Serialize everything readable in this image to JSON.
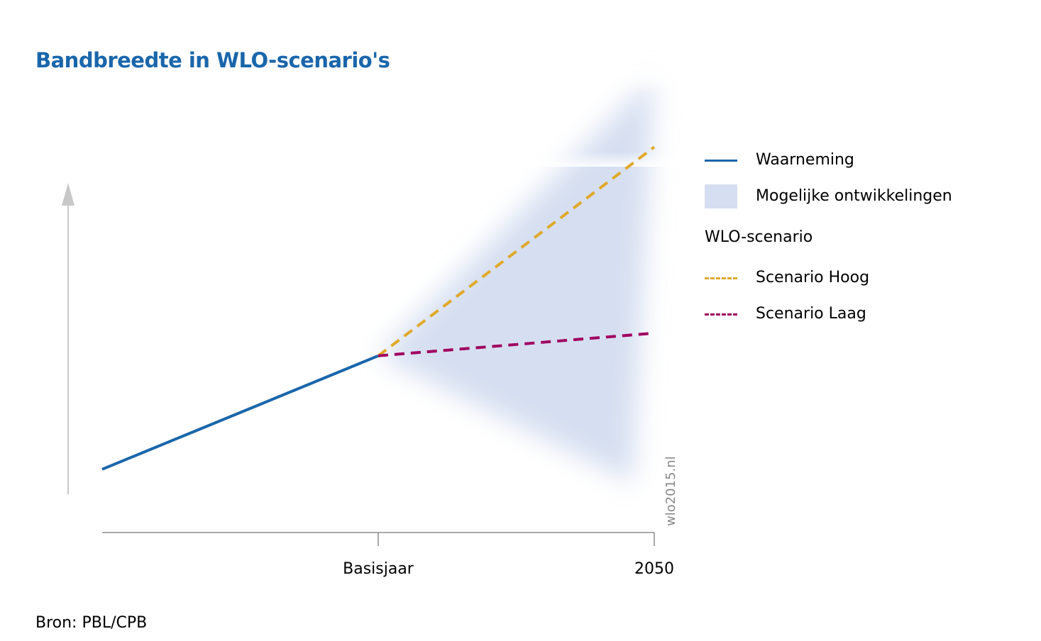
{
  "title": "Bandbreedte in WLO-scenario's",
  "source": "Bron: PBL/CPB",
  "watermark": "wlo2015.nl",
  "legend": {
    "observation": "Waarneming",
    "band": "Mogelijke ontwikkelingen",
    "heading": "WLO-scenario",
    "high": "Scenario Hoog",
    "low": "Scenario Laag"
  },
  "colors": {
    "title": "#1a66ab",
    "observation": "#1a66ab",
    "band": "#d6dff1",
    "high": "#e0a92a",
    "low": "#a0005f",
    "axis": "#c8c8c8"
  },
  "chart_data": {
    "type": "line",
    "x_ticks": [
      "",
      "Basisjaar",
      "2050"
    ],
    "y_axis": {
      "labels": false,
      "arrow": true
    },
    "xlabel": "",
    "ylabel": "",
    "ylim": [
      0,
      100
    ],
    "series": [
      {
        "name": "Waarneming",
        "style": "solid",
        "x": [
          0,
          1
        ],
        "y": [
          13,
          38
        ]
      },
      {
        "name": "Scenario Hoog",
        "style": "dashed",
        "x": [
          1,
          2
        ],
        "y": [
          38,
          84
        ]
      },
      {
        "name": "Scenario Laag",
        "style": "dashed",
        "x": [
          1,
          2
        ],
        "y": [
          38,
          43
        ]
      }
    ],
    "band": {
      "name": "Mogelijke ontwikkelingen",
      "x": [
        1,
        2
      ],
      "lower": [
        38,
        10
      ],
      "upper": [
        38,
        100
      ]
    }
  }
}
